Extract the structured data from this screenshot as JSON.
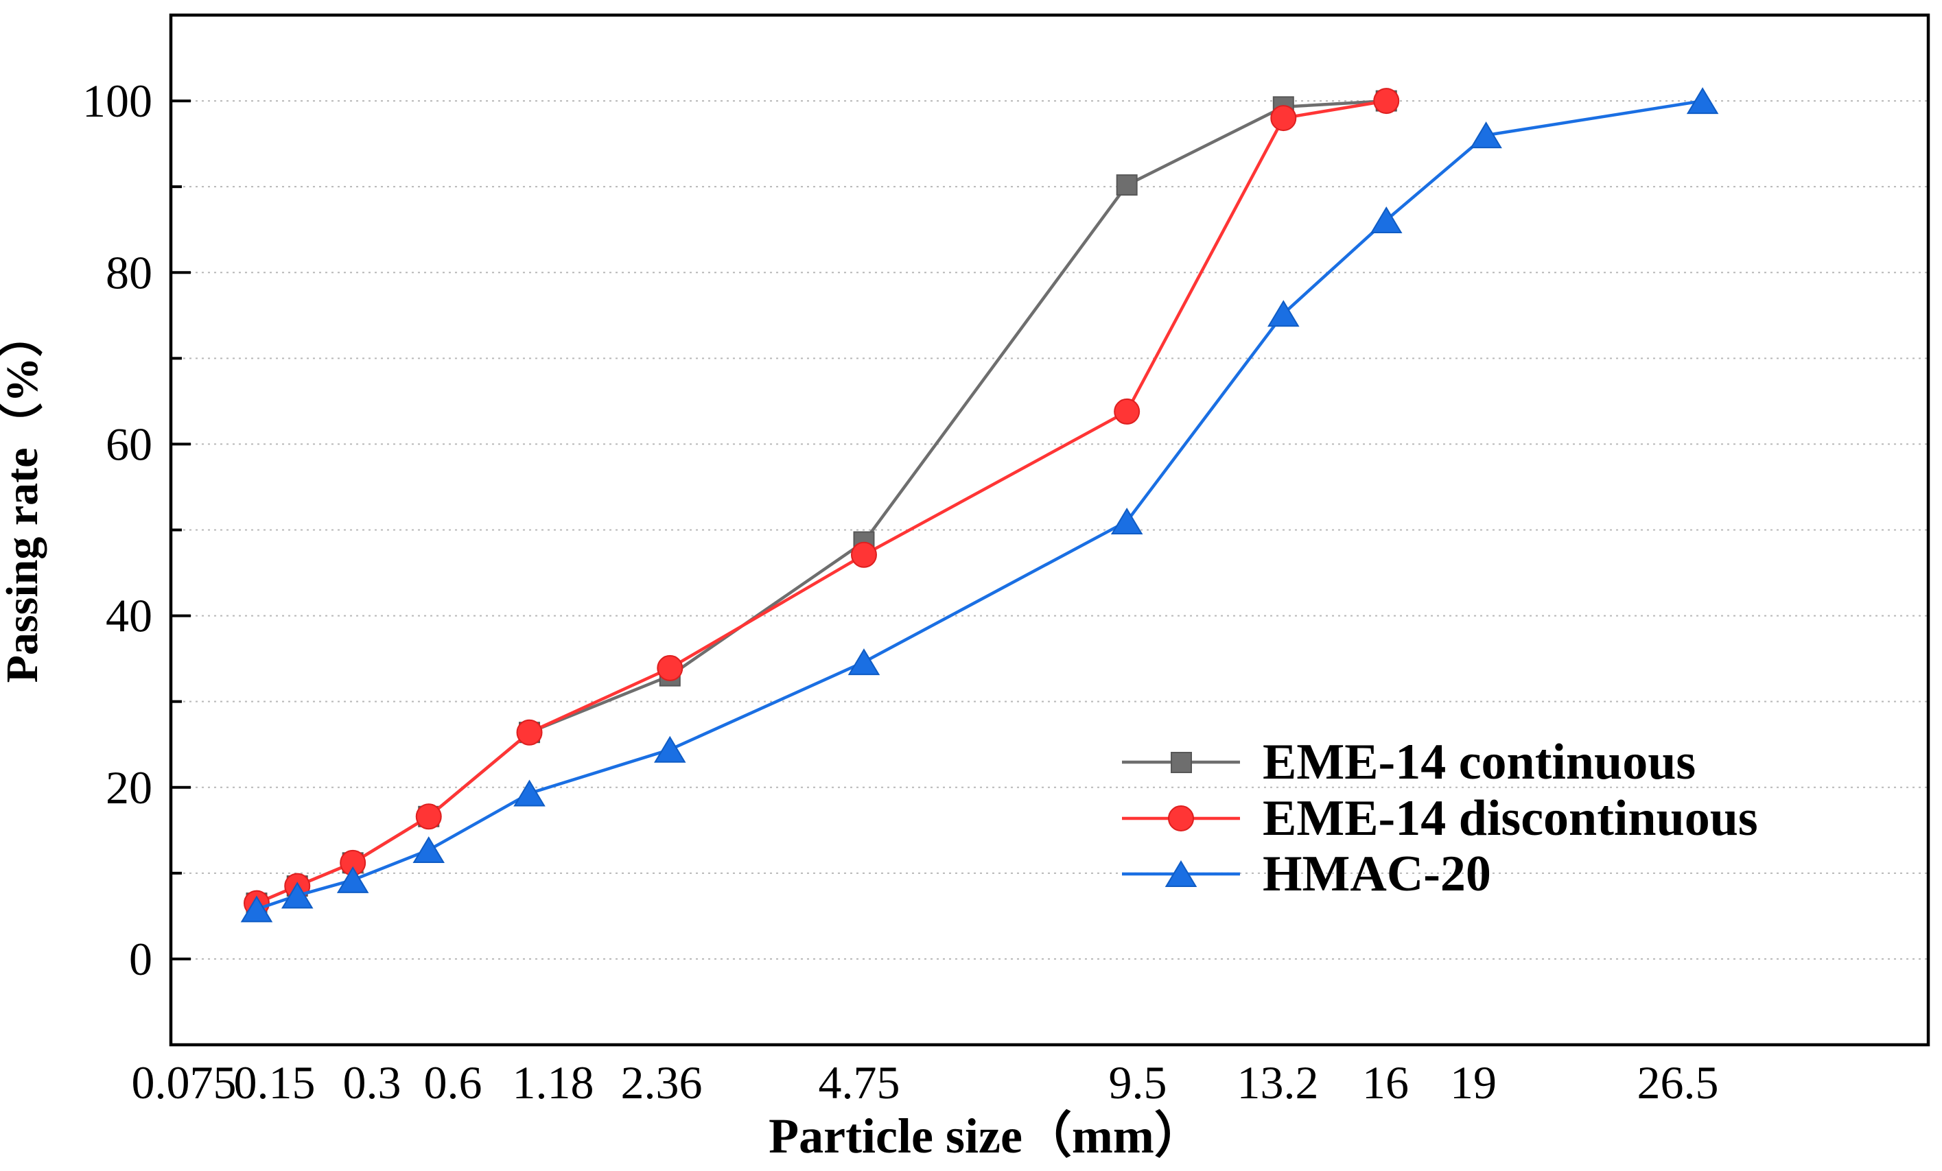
{
  "chart_data": {
    "type": "line",
    "xlabel": "Particle size（mm）",
    "ylabel": "Passing rate（%）",
    "x_power_exponent": 0.45,
    "xlim": [
      0.0028,
      35.8
    ],
    "ylim": [
      -10,
      110
    ],
    "x_ticks": [
      0.075,
      0.15,
      0.3,
      0.6,
      1.18,
      2.36,
      4.75,
      9.5,
      13.2,
      16,
      19,
      26.5
    ],
    "x_tick_labels": [
      "0.075",
      "0.15",
      "0.3",
      "0.6",
      "1.18",
      "2.36",
      "4.75",
      "9.5",
      "13.2",
      "16",
      "19",
      "26.5"
    ],
    "y_ticks": [
      0,
      20,
      40,
      60,
      80,
      100
    ],
    "y_tick_labels": [
      "0",
      "20",
      "40",
      "60",
      "80",
      "100"
    ],
    "y_minor_ticks": [
      10,
      30,
      50,
      70,
      90
    ],
    "grid": true,
    "legend_position": "bottom-right",
    "series": [
      {
        "name": "EME-14 continuous",
        "marker": "square",
        "color": "#6e6e6e",
        "edge_color": "#575757",
        "x": [
          0.075,
          0.15,
          0.3,
          0.6,
          1.18,
          2.36,
          4.75,
          9.5,
          13.2,
          16
        ],
        "y": [
          6.5,
          8.5,
          11.2,
          16.6,
          26.4,
          33.0,
          48.6,
          90.2,
          99.3,
          100
        ]
      },
      {
        "name": "EME-14 discontinuous",
        "marker": "circle",
        "color": "#ff3535",
        "edge_color": "#dd1f1f",
        "x": [
          0.075,
          0.15,
          0.3,
          0.6,
          1.18,
          2.36,
          4.75,
          9.5,
          13.2,
          16
        ],
        "y": [
          6.5,
          8.5,
          11.2,
          16.6,
          26.4,
          33.9,
          47.1,
          63.8,
          98.0,
          100
        ]
      },
      {
        "name": "HMAC-20",
        "marker": "triangle",
        "color": "#1a6fe3",
        "edge_color": "#0f5cc4",
        "x": [
          0.075,
          0.15,
          0.3,
          0.6,
          1.18,
          2.36,
          4.75,
          9.5,
          13.2,
          16,
          19,
          26.5
        ],
        "y": [
          5.8,
          7.4,
          9.2,
          12.7,
          19.3,
          24.4,
          34.6,
          51.0,
          75.2,
          86.1,
          96.0,
          100
        ]
      }
    ]
  }
}
